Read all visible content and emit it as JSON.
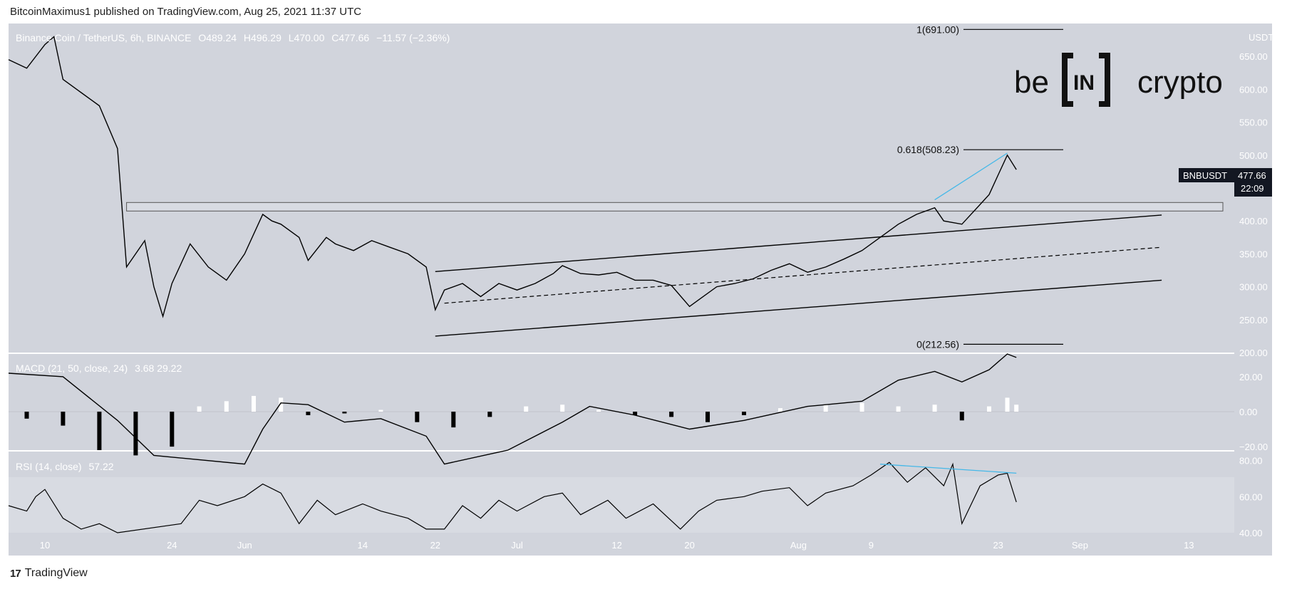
{
  "header": {
    "text": "BitcoinMaximus1 published on TradingView.com, Aug 25, 2021 11:37 UTC"
  },
  "footer": {
    "brand": "TradingView",
    "mark": "17"
  },
  "logo": {
    "left": "be",
    "middle": "IN",
    "right": "crypto"
  },
  "legend": {
    "symbol": "Binance Coin / TetherUS, 6h, BINANCE",
    "open": "O489.24",
    "high": "H496.29",
    "low": "L470.00",
    "close": "C477.66",
    "change": "−11.57 (−2.36%)"
  },
  "price_tag": {
    "symbol": "BNBUSDT",
    "price": "477.66",
    "countdown": "22:09"
  },
  "colors": {
    "pane": "#d1d4dc",
    "line": "#000000",
    "accent": "#45b8e8",
    "zone": "#d8dbe2",
    "bull": "#ffffff",
    "bear": "#000000"
  },
  "chart_data": {
    "type": "line",
    "title": "Binance Coin / TetherUS, 6h, BINANCE",
    "price_axis": {
      "unit": "USDT",
      "ylim": [
        200,
        700
      ],
      "ticks": [
        "650.00",
        "600.00",
        "550.00",
        "500.00",
        "450.00",
        "400.00",
        "350.00",
        "300.00",
        "250.00",
        "200.00"
      ]
    },
    "time_ticks": [
      "10",
      "24",
      "Jun",
      "14",
      "22",
      "Jul",
      "12",
      "20",
      "Aug",
      "9",
      "23",
      "Sep",
      "13"
    ],
    "price_series": [
      [
        "2021-05-06",
        645
      ],
      [
        "2021-05-08",
        632
      ],
      [
        "2021-05-10",
        668
      ],
      [
        "2021-05-11",
        680
      ],
      [
        "2021-05-12",
        615
      ],
      [
        "2021-05-14",
        595
      ],
      [
        "2021-05-16",
        575
      ],
      [
        "2021-05-18",
        510
      ],
      [
        "2021-05-19",
        330
      ],
      [
        "2021-05-21",
        370
      ],
      [
        "2021-05-22",
        300
      ],
      [
        "2021-05-23",
        255
      ],
      [
        "2021-05-24",
        305
      ],
      [
        "2021-05-26",
        365
      ],
      [
        "2021-05-28",
        330
      ],
      [
        "2021-05-30",
        310
      ],
      [
        "2021-06-01",
        350
      ],
      [
        "2021-06-03",
        410
      ],
      [
        "2021-06-04",
        400
      ],
      [
        "2021-06-05",
        395
      ],
      [
        "2021-06-07",
        375
      ],
      [
        "2021-06-08",
        340
      ],
      [
        "2021-06-10",
        375
      ],
      [
        "2021-06-11",
        365
      ],
      [
        "2021-06-13",
        355
      ],
      [
        "2021-06-15",
        370
      ],
      [
        "2021-06-17",
        360
      ],
      [
        "2021-06-19",
        350
      ],
      [
        "2021-06-21",
        330
      ],
      [
        "2021-06-22",
        265
      ],
      [
        "2021-06-23",
        295
      ],
      [
        "2021-06-25",
        305
      ],
      [
        "2021-06-27",
        285
      ],
      [
        "2021-06-29",
        305
      ],
      [
        "2021-07-01",
        295
      ],
      [
        "2021-07-03",
        305
      ],
      [
        "2021-07-05",
        320
      ],
      [
        "2021-07-06",
        332
      ],
      [
        "2021-07-08",
        320
      ],
      [
        "2021-07-10",
        318
      ],
      [
        "2021-07-12",
        322
      ],
      [
        "2021-07-14",
        310
      ],
      [
        "2021-07-16",
        310
      ],
      [
        "2021-07-18",
        302
      ],
      [
        "2021-07-20",
        270
      ],
      [
        "2021-07-21",
        280
      ],
      [
        "2021-07-23",
        300
      ],
      [
        "2021-07-25",
        305
      ],
      [
        "2021-07-27",
        312
      ],
      [
        "2021-07-29",
        325
      ],
      [
        "2021-07-31",
        335
      ],
      [
        "2021-08-02",
        322
      ],
      [
        "2021-08-04",
        330
      ],
      [
        "2021-08-06",
        342
      ],
      [
        "2021-08-08",
        355
      ],
      [
        "2021-08-10",
        375
      ],
      [
        "2021-08-12",
        395
      ],
      [
        "2021-08-14",
        410
      ],
      [
        "2021-08-16",
        420
      ],
      [
        "2021-08-17",
        400
      ],
      [
        "2021-08-19",
        395
      ],
      [
        "2021-08-21",
        425
      ],
      [
        "2021-08-22",
        440
      ],
      [
        "2021-08-23",
        470
      ],
      [
        "2021-08-24",
        500
      ],
      [
        "2021-08-25",
        478
      ]
    ],
    "fib_levels": [
      {
        "label": "1(691.00)",
        "value": 691.0
      },
      {
        "label": "0.618(508.23)",
        "value": 508.23
      },
      {
        "label": "0(212.56)",
        "value": 212.56
      }
    ],
    "horizontal_zone": [
      415,
      428
    ],
    "channel": {
      "upper": [
        [
          "2021-06-22",
          323
        ],
        [
          "2021-09-10",
          409
        ]
      ],
      "middle": [
        [
          "2021-06-23",
          275
        ],
        [
          "2021-09-10",
          360
        ]
      ],
      "lower": [
        [
          "2021-06-22",
          225
        ],
        [
          "2021-09-10",
          310
        ]
      ]
    },
    "price_divergence_line": [
      [
        "2021-08-16",
        432
      ],
      [
        "2021-08-24",
        503
      ]
    ],
    "macd": {
      "label": "MACD (21, 50, close, 24)",
      "values": "3.68  29.22",
      "ticks": [
        "20.00",
        "0.00",
        "−20.00"
      ],
      "ylim": [
        -22,
        33
      ],
      "line": [
        [
          "2021-05-06",
          22
        ],
        [
          "2021-05-12",
          20
        ],
        [
          "2021-05-18",
          -5
        ],
        [
          "2021-05-22",
          -25
        ],
        [
          "2021-06-01",
          -30
        ],
        [
          "2021-06-03",
          -10
        ],
        [
          "2021-06-05",
          5
        ],
        [
          "2021-06-08",
          4
        ],
        [
          "2021-06-12",
          -6
        ],
        [
          "2021-06-16",
          -4
        ],
        [
          "2021-06-21",
          -14
        ],
        [
          "2021-06-23",
          -30
        ],
        [
          "2021-06-30",
          -22
        ],
        [
          "2021-07-06",
          -6
        ],
        [
          "2021-07-09",
          3
        ],
        [
          "2021-07-14",
          -2
        ],
        [
          "2021-07-20",
          -10
        ],
        [
          "2021-07-26",
          -5
        ],
        [
          "2021-08-02",
          3
        ],
        [
          "2021-08-08",
          6
        ],
        [
          "2021-08-12",
          18
        ],
        [
          "2021-08-16",
          23
        ],
        [
          "2021-08-19",
          17
        ],
        [
          "2021-08-22",
          24
        ],
        [
          "2021-08-24",
          33
        ],
        [
          "2021-08-25",
          31
        ]
      ],
      "histogram": [
        [
          "2021-05-08",
          -4
        ],
        [
          "2021-05-12",
          -8
        ],
        [
          "2021-05-16",
          -22
        ],
        [
          "2021-05-20",
          -25
        ],
        [
          "2021-05-24",
          -20
        ],
        [
          "2021-05-27",
          3
        ],
        [
          "2021-05-30",
          6
        ],
        [
          "2021-06-02",
          9
        ],
        [
          "2021-06-05",
          8
        ],
        [
          "2021-06-08",
          -2
        ],
        [
          "2021-06-12",
          -1
        ],
        [
          "2021-06-16",
          1
        ],
        [
          "2021-06-20",
          -6
        ],
        [
          "2021-06-24",
          -9
        ],
        [
          "2021-06-28",
          -3
        ],
        [
          "2021-07-02",
          3
        ],
        [
          "2021-07-06",
          4
        ],
        [
          "2021-07-10",
          1
        ],
        [
          "2021-07-14",
          -2
        ],
        [
          "2021-07-18",
          -3
        ],
        [
          "2021-07-22",
          -6
        ],
        [
          "2021-07-26",
          -2
        ],
        [
          "2021-07-30",
          2
        ],
        [
          "2021-08-04",
          4
        ],
        [
          "2021-08-08",
          5
        ],
        [
          "2021-08-12",
          3
        ],
        [
          "2021-08-16",
          4
        ],
        [
          "2021-08-19",
          -5
        ],
        [
          "2021-08-22",
          3
        ],
        [
          "2021-08-24",
          8
        ],
        [
          "2021-08-25",
          4
        ]
      ]
    },
    "rsi": {
      "label": "RSI (14, close)",
      "value": "57.22",
      "ticks": [
        "80.00",
        "60.00",
        "40.00"
      ],
      "ylim": [
        40,
        85
      ],
      "line": [
        [
          "2021-05-06",
          55
        ],
        [
          "2021-05-08",
          52
        ],
        [
          "2021-05-09",
          60
        ],
        [
          "2021-05-10",
          64
        ],
        [
          "2021-05-12",
          48
        ],
        [
          "2021-05-14",
          42
        ],
        [
          "2021-05-16",
          45
        ],
        [
          "2021-05-18",
          40
        ],
        [
          "2021-05-25",
          45
        ],
        [
          "2021-05-27",
          58
        ],
        [
          "2021-05-29",
          55
        ],
        [
          "2021-06-01",
          60
        ],
        [
          "2021-06-03",
          67
        ],
        [
          "2021-06-05",
          62
        ],
        [
          "2021-06-07",
          45
        ],
        [
          "2021-06-09",
          58
        ],
        [
          "2021-06-11",
          50
        ],
        [
          "2021-06-14",
          56
        ],
        [
          "2021-06-16",
          52
        ],
        [
          "2021-06-19",
          48
        ],
        [
          "2021-06-21",
          42
        ],
        [
          "2021-06-23",
          42
        ],
        [
          "2021-06-25",
          55
        ],
        [
          "2021-06-27",
          48
        ],
        [
          "2021-06-29",
          58
        ],
        [
          "2021-07-01",
          52
        ],
        [
          "2021-07-04",
          60
        ],
        [
          "2021-07-06",
          62
        ],
        [
          "2021-07-08",
          50
        ],
        [
          "2021-07-11",
          58
        ],
        [
          "2021-07-13",
          48
        ],
        [
          "2021-07-16",
          56
        ],
        [
          "2021-07-19",
          42
        ],
        [
          "2021-07-21",
          52
        ],
        [
          "2021-07-23",
          58
        ],
        [
          "2021-07-26",
          60
        ],
        [
          "2021-07-28",
          63
        ],
        [
          "2021-07-31",
          65
        ],
        [
          "2021-08-02",
          55
        ],
        [
          "2021-08-04",
          62
        ],
        [
          "2021-08-07",
          66
        ],
        [
          "2021-08-09",
          72
        ],
        [
          "2021-08-11",
          79
        ],
        [
          "2021-08-13",
          68
        ],
        [
          "2021-08-15",
          76
        ],
        [
          "2021-08-17",
          66
        ],
        [
          "2021-08-18",
          78
        ],
        [
          "2021-08-19",
          45
        ],
        [
          "2021-08-21",
          66
        ],
        [
          "2021-08-23",
          72
        ],
        [
          "2021-08-24",
          73
        ],
        [
          "2021-08-25",
          57
        ]
      ],
      "divergence_line": [
        [
          "2021-08-10",
          78
        ],
        [
          "2021-08-25",
          73
        ]
      ]
    }
  }
}
